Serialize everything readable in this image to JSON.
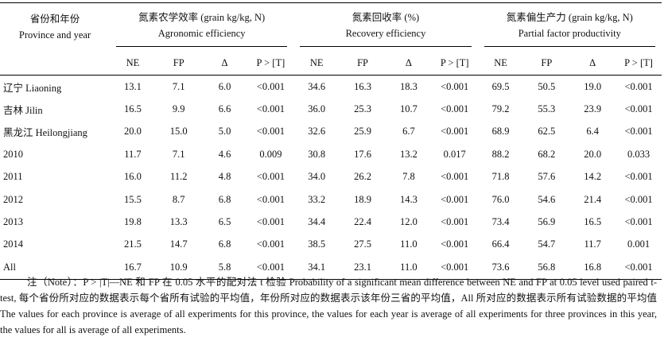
{
  "table": {
    "row_header": [
      "省份和年份",
      "Province and year"
    ],
    "groups": [
      {
        "zh": "氮素农学效率 (grain kg/kg, N)",
        "en": "Agronomic efficiency"
      },
      {
        "zh": "氮素回收率 (%)",
        "en": "Recovery efficiency"
      },
      {
        "zh": "氮素偏生产力 (grain kg/kg, N)",
        "en": "Partial factor productivity"
      }
    ],
    "columns": [
      "NE",
      "FP",
      "Δ",
      "P > [T]",
      "NE",
      "FP",
      "Δ",
      "P > [T]",
      "NE",
      "FP",
      "Δ",
      "P > [T]"
    ],
    "rows": [
      [
        "辽宁 Liaoning",
        "13.1",
        "7.1",
        "6.0",
        "<0.001",
        "34.6",
        "16.3",
        "18.3",
        "<0.001",
        "69.5",
        "50.5",
        "19.0",
        "<0.001"
      ],
      [
        "吉林 Jilin",
        "16.5",
        "9.9",
        "6.6",
        "<0.001",
        "36.0",
        "25.3",
        "10.7",
        "<0.001",
        "79.2",
        "55.3",
        "23.9",
        "<0.001"
      ],
      [
        "黑龙江 Heilongjiang",
        "20.0",
        "15.0",
        "5.0",
        "<0.001",
        "32.6",
        "25.9",
        "6.7",
        "<0.001",
        "68.9",
        "62.5",
        "6.4",
        "<0.001"
      ],
      [
        "2010",
        "11.7",
        "7.1",
        "4.6",
        "0.009",
        "30.8",
        "17.6",
        "13.2",
        "0.017",
        "88.2",
        "68.2",
        "20.0",
        "0.033"
      ],
      [
        "2011",
        "16.0",
        "11.2",
        "4.8",
        "<0.001",
        "34.0",
        "26.2",
        "7.8",
        "<0.001",
        "71.8",
        "57.6",
        "14.2",
        "<0.001"
      ],
      [
        "2012",
        "15.5",
        "8.7",
        "6.8",
        "<0.001",
        "33.2",
        "18.9",
        "14.3",
        "<0.001",
        "76.0",
        "54.6",
        "21.4",
        "<0.001"
      ],
      [
        "2013",
        "19.8",
        "13.3",
        "6.5",
        "<0.001",
        "34.4",
        "22.4",
        "12.0",
        "<0.001",
        "73.4",
        "56.9",
        "16.5",
        "<0.001"
      ],
      [
        "2014",
        "21.5",
        "14.7",
        "6.8",
        "<0.001",
        "38.5",
        "27.5",
        "11.0",
        "<0.001",
        "66.4",
        "54.7",
        "11.7",
        "0.001"
      ],
      [
        "All",
        "16.7",
        "10.9",
        "5.8",
        "<0.001",
        "34.1",
        "23.1",
        "11.0",
        "<0.001",
        "73.6",
        "56.8",
        "16.8",
        "<0.001"
      ]
    ],
    "note": "注（Note）：P > |T|—NE 和 FP 在 0.05 水平的配对法 t 检验 Probability of a significant mean difference between NE and FP at 0.05 level used paired t-test, 每个省份所对应的数据表示每个省所有试验的平均值，年份所对应的数据表示该年份三省的平均值，All 所对应的数据表示所有试验数据的平均值 The values for each province is average of all experiments for this province, the values for each year is average of all experiments for three provinces in this year, the values for all is average of all experiments."
  }
}
